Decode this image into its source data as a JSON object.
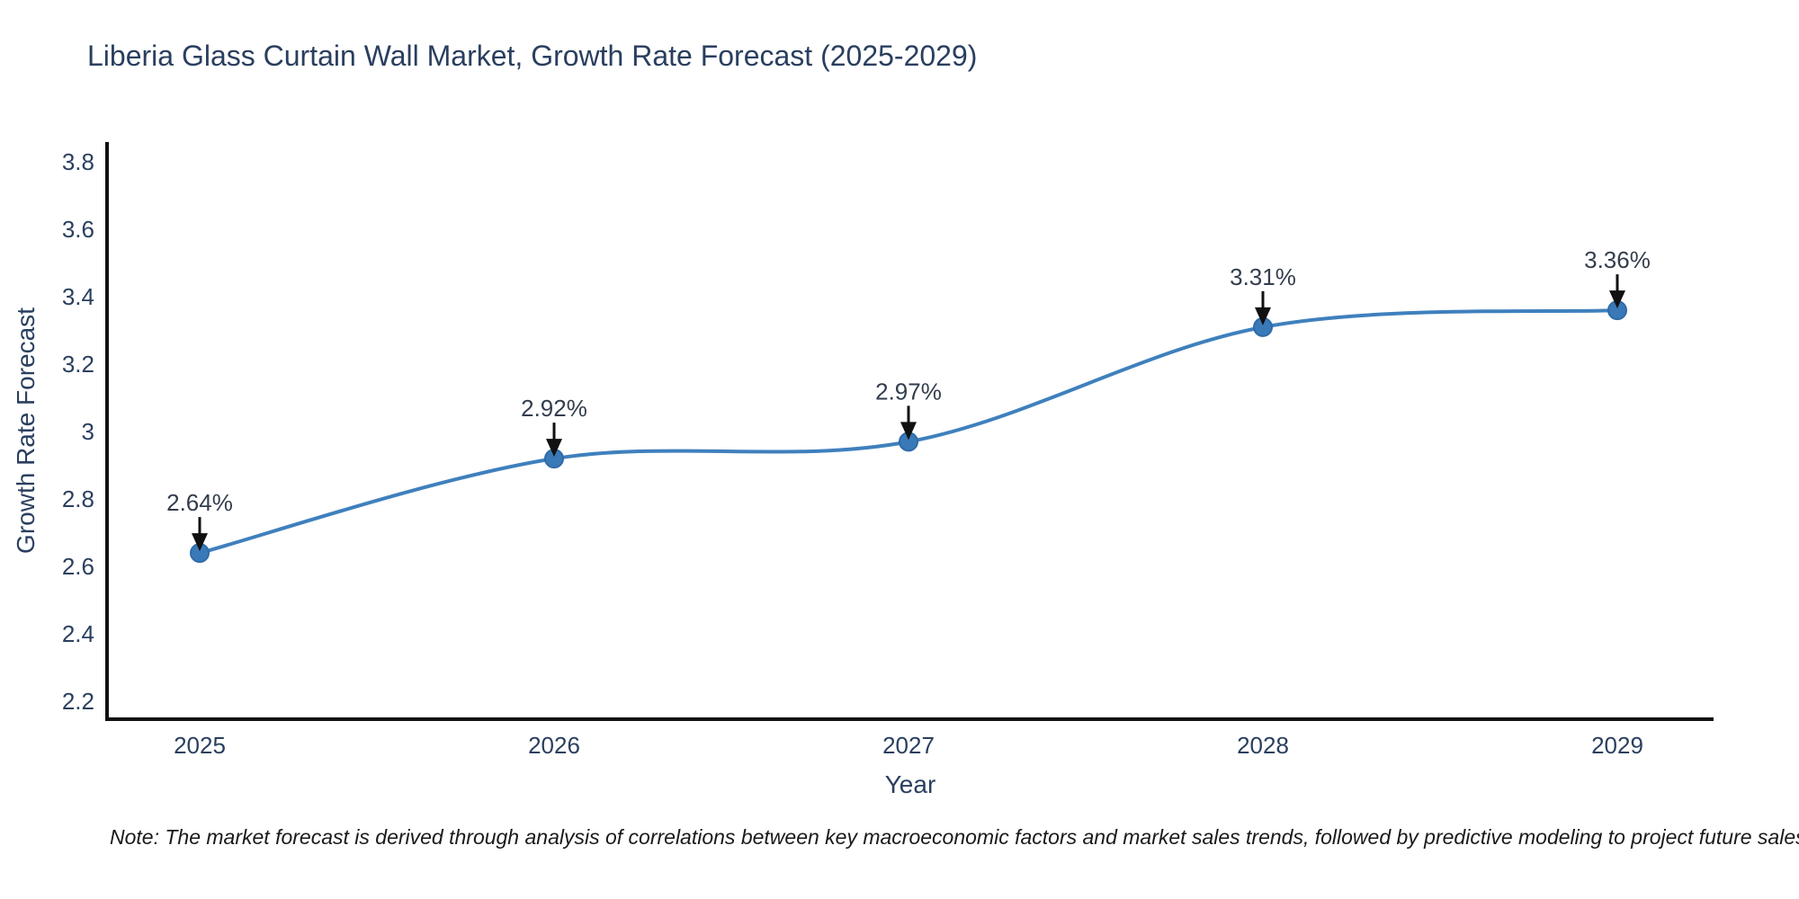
{
  "page": {
    "note": "Note: The market forecast is derived through analysis of correlations between key macroeconomic factors and market sales trends, followed by predictive modeling to project future sales"
  },
  "chart_data": {
    "type": "line",
    "title": "Liberia Glass Curtain Wall Market, Growth Rate Forecast (2025-2029)",
    "categories": [
      "2025",
      "2026",
      "2027",
      "2028",
      "2029"
    ],
    "values": [
      2.64,
      2.92,
      2.97,
      3.31,
      3.36
    ],
    "point_labels": [
      "2.64%",
      "2.92%",
      "2.97%",
      "3.31%",
      "3.36%"
    ],
    "xlabel": "Year",
    "ylabel": "Growth Rate Forecast",
    "ytick_labels": [
      "2.2",
      "2.4",
      "2.6",
      "2.8",
      "3",
      "3.2",
      "3.4",
      "3.6",
      "3.8"
    ],
    "yticks": [
      2.2,
      2.4,
      2.6,
      2.8,
      3.0,
      3.2,
      3.4,
      3.6,
      3.8
    ],
    "ylim": [
      2.147,
      3.859
    ],
    "grid": false,
    "legend": false,
    "line_shape": "spline",
    "colors": {
      "line": "#3f80bd",
      "marker_fill": "#3a79b8",
      "marker_edge": "#2f6ba8",
      "axis": "#111111",
      "tick_label": "#2a3f5f",
      "axis_title": "#2a3f5f",
      "title": "#2a3f5f",
      "annotation_text": "#333d4d",
      "annotation_arrow": "#111111",
      "background": "#ffffff"
    }
  }
}
